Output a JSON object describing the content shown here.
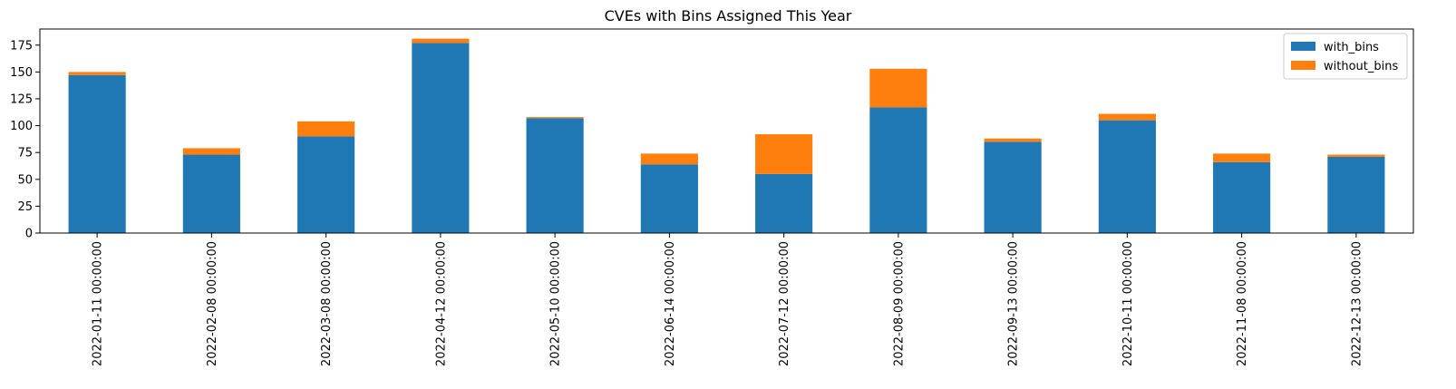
{
  "chart_data": {
    "type": "bar",
    "stacked": true,
    "title": "CVEs with Bins Assigned This Year",
    "xlabel": "",
    "ylabel": "",
    "categories": [
      "2022-01-11 00:00:00",
      "2022-02-08 00:00:00",
      "2022-03-08 00:00:00",
      "2022-04-12 00:00:00",
      "2022-05-10 00:00:00",
      "2022-06-14 00:00:00",
      "2022-07-12 00:00:00",
      "2022-08-09 00:00:00",
      "2022-09-13 00:00:00",
      "2022-10-11 00:00:00",
      "2022-11-08 00:00:00",
      "2022-12-13 00:00:00"
    ],
    "series": [
      {
        "name": "with_bins",
        "color": "#1f77b4",
        "values": [
          147,
          73,
          90,
          177,
          107,
          64,
          55,
          117,
          85,
          105,
          66,
          71
        ]
      },
      {
        "name": "without_bins",
        "color": "#ff7f0e",
        "values": [
          3,
          6,
          14,
          4,
          1,
          10,
          37,
          36,
          3,
          6,
          8,
          2
        ]
      }
    ],
    "ylim": [
      0,
      190
    ],
    "yticks": [
      0,
      25,
      50,
      75,
      100,
      125,
      150,
      175
    ],
    "legend": "top-right",
    "grid": false
  }
}
